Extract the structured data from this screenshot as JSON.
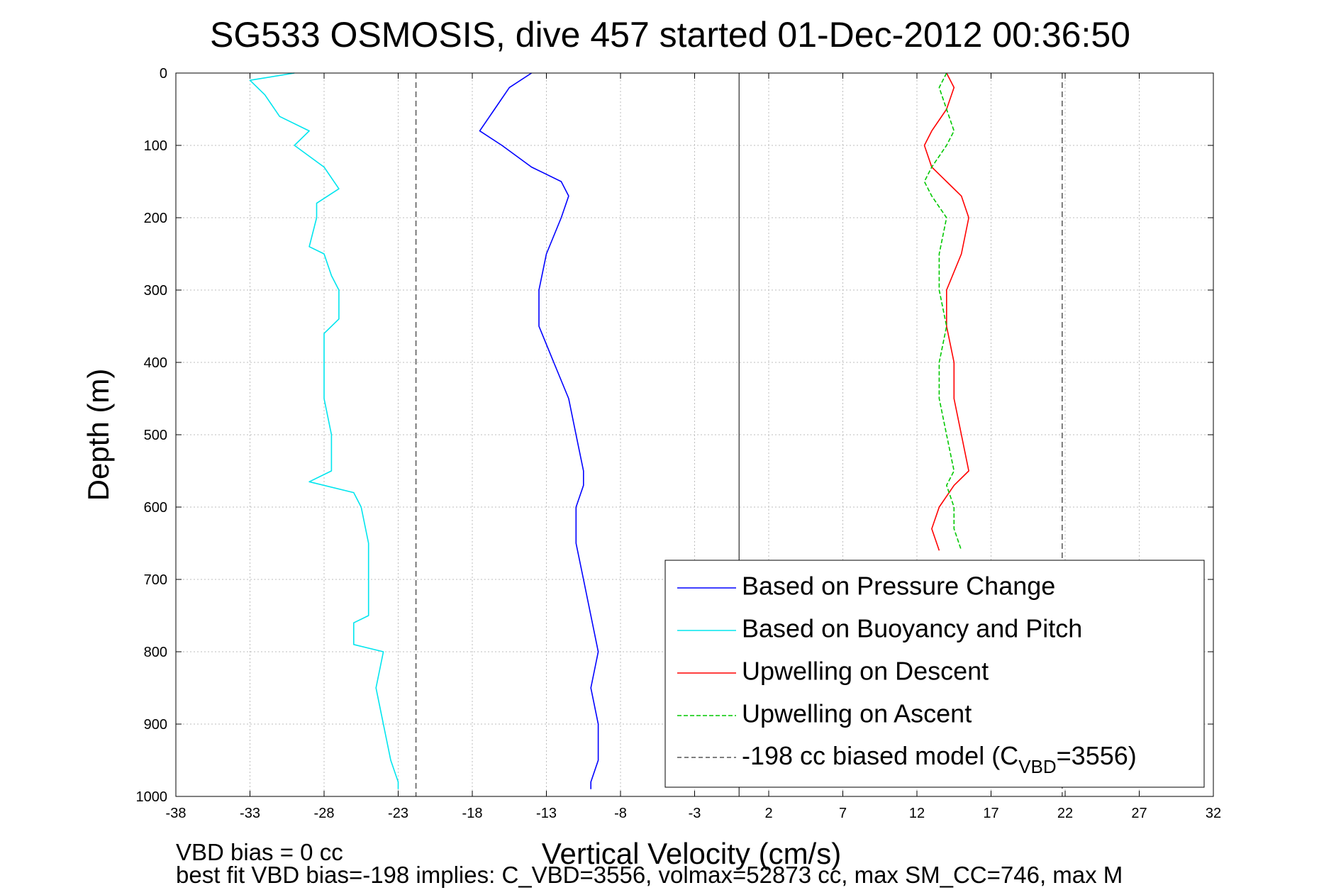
{
  "chart_data": {
    "type": "line",
    "title": "SG533 OSMOSIS, dive 457 started 01-Dec-2012 00:36:50",
    "xlabel": "Vertical Velocity (cm/s)",
    "ylabel": "Depth (m)",
    "xlim": [
      -38,
      32
    ],
    "ylim": [
      0,
      1000
    ],
    "y_reversed": true,
    "x_ticks": [
      -38,
      -33,
      -28,
      -23,
      -18,
      -13,
      -8,
      -3,
      2,
      7,
      12,
      17,
      22,
      27,
      32
    ],
    "y_ticks": [
      0,
      100,
      200,
      300,
      400,
      500,
      600,
      700,
      800,
      900,
      1000
    ],
    "grid": true,
    "legend_position": "bottom-right",
    "series": [
      {
        "name": "Based on Pressure Change",
        "color": "#0000ff",
        "style": "solid",
        "depth": [
          0,
          20,
          50,
          80,
          100,
          130,
          150,
          170,
          200,
          250,
          300,
          350,
          400,
          450,
          500,
          550,
          570,
          600,
          650,
          700,
          750,
          800,
          850,
          900,
          950,
          980,
          990
        ],
        "velocity": [
          -14,
          -15.5,
          -16.5,
          -17.5,
          -16,
          -14,
          -12,
          -11.5,
          -12,
          -13,
          -13.5,
          -13.5,
          -12.5,
          -11.5,
          -11,
          -10.5,
          -10.5,
          -11,
          -11,
          -10.5,
          -10,
          -9.5,
          -10,
          -9.5,
          -9.5,
          -10,
          -10
        ]
      },
      {
        "name": "Based on Buoyancy and Pitch",
        "color": "#00e5ee",
        "style": "solid",
        "depth": [
          0,
          10,
          30,
          60,
          80,
          100,
          130,
          160,
          180,
          200,
          240,
          250,
          280,
          300,
          340,
          360,
          400,
          450,
          500,
          550,
          565,
          580,
          600,
          650,
          700,
          750,
          760,
          790,
          800,
          850,
          900,
          950,
          980,
          990
        ],
        "velocity": [
          -30,
          -33,
          -32,
          -31,
          -29,
          -30,
          -28,
          -27,
          -28.5,
          -28.5,
          -29,
          -28,
          -27.5,
          -27,
          -27,
          -28,
          -28,
          -28,
          -27.5,
          -27.5,
          -29,
          -26,
          -25.5,
          -25,
          -25,
          -25,
          -26,
          -26,
          -24,
          -24.5,
          -24,
          -23.5,
          -23,
          -23
        ]
      },
      {
        "name": "Upwelling on Descent",
        "color": "#ff0000",
        "style": "solid",
        "depth": [
          0,
          20,
          50,
          80,
          100,
          130,
          150,
          170,
          200,
          250,
          300,
          350,
          400,
          450,
          500,
          550,
          570,
          600,
          630,
          660
        ],
        "velocity": [
          14,
          14.5,
          14,
          13,
          12.5,
          13,
          14,
          15,
          15.5,
          15,
          14,
          14,
          14.5,
          14.5,
          15,
          15.5,
          14.5,
          13.5,
          13,
          13.5
        ]
      },
      {
        "name": "Upwelling on Ascent",
        "color": "#00c800",
        "style": "dashed",
        "depth": [
          0,
          20,
          50,
          80,
          100,
          130,
          150,
          170,
          200,
          250,
          300,
          350,
          400,
          450,
          500,
          550,
          570,
          600,
          630,
          660
        ],
        "velocity": [
          14,
          13.5,
          14,
          14.5,
          14,
          13,
          12.5,
          13,
          14,
          13.5,
          13.5,
          14,
          13.5,
          13.5,
          14,
          14.5,
          14,
          14.5,
          14.5,
          15
        ]
      }
    ],
    "reference_lines": {
      "name": "-198 cc biased model (C_VBD=3556)",
      "style": "dashed",
      "color": "#555555",
      "x_values": [
        -21.8,
        21.8
      ]
    },
    "zero_line_x": 0
  },
  "legend": {
    "entries": [
      {
        "label": "Based on Pressure Change",
        "color": "#0000ff",
        "style": "solid"
      },
      {
        "label": "Based on Buoyancy and Pitch",
        "color": "#00e5ee",
        "style": "solid"
      },
      {
        "label": "Upwelling on Descent",
        "color": "#ff0000",
        "style": "solid"
      },
      {
        "label": "Upwelling on Ascent",
        "color": "#00c800",
        "style": "dashed"
      }
    ],
    "model_label_prefix": "-198 cc biased model (C",
    "model_label_sub": "VBD",
    "model_label_suffix": "=3556)"
  },
  "footer": {
    "line1": "VBD bias = 0 cc",
    "line2": "best fit VBD bias=-198 implies: C_VBD=3556, volmax=52873 cc, max SM_CC=746, max M"
  }
}
